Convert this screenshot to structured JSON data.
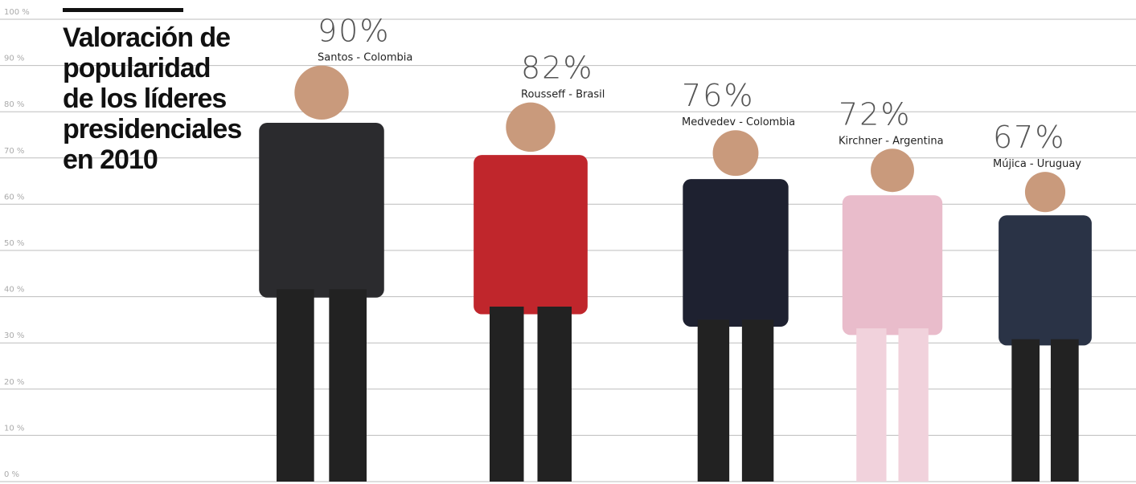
{
  "chart_data": {
    "type": "pictograph",
    "title": "Valoración de popularidad de los líderes presidenciales en 2010",
    "categories": [
      "Santos - Colombia",
      "Rousseff - Brasil",
      "Medvedev - Colombia",
      "Kirchner - Argentina",
      "Mújica - Uruguay"
    ],
    "values": [
      90,
      82,
      76,
      72,
      67
    ],
    "value_labels": [
      "90%",
      "82%",
      "76%",
      "72%",
      "67%"
    ],
    "colors": [
      "#2b2b2e",
      "#c0262c",
      "#1e2130",
      "#e9bccb",
      "#2a3346"
    ],
    "ylim": [
      0,
      100
    ],
    "yticks": [
      {
        "value": 0,
        "label": "0 %"
      },
      {
        "value": 10,
        "label": "10 %"
      },
      {
        "value": 20,
        "label": "20 %"
      },
      {
        "value": 30,
        "label": "30 %"
      },
      {
        "value": 40,
        "label": "40 %"
      },
      {
        "value": 50,
        "label": "50 %"
      },
      {
        "value": 60,
        "label": "60 %"
      },
      {
        "value": 70,
        "label": "70 %"
      },
      {
        "value": 80,
        "label": "80 %"
      },
      {
        "value": 90,
        "label": "90 %"
      },
      {
        "value": 100,
        "label": "100 %"
      }
    ],
    "grid": true
  }
}
